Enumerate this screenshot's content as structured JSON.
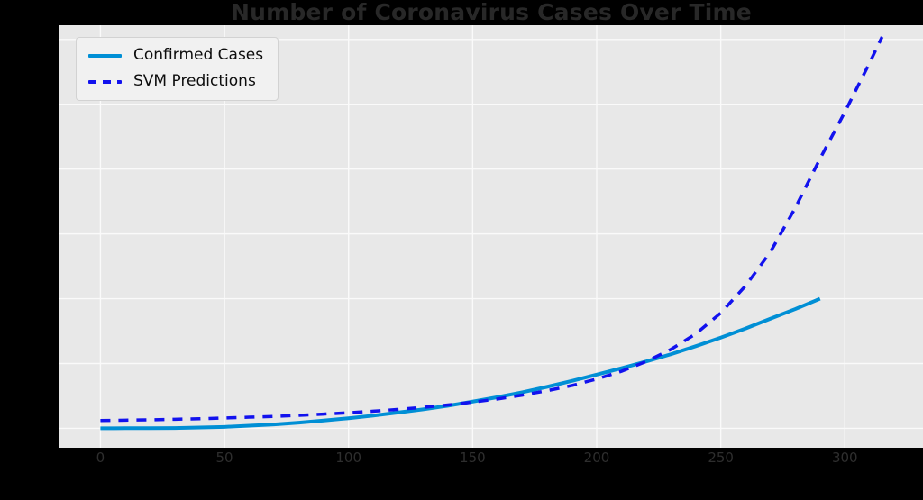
{
  "window": {
    "background": "#000000"
  },
  "title": {
    "text": "Number of Coronavirus Cases Over Time",
    "color": "#282828"
  },
  "plot": {
    "background": "#e8e8e8",
    "grid_color": "#fafafa"
  },
  "legend": {
    "position": "upper left",
    "items": [
      {
        "label": "Confirmed Cases",
        "color": "#008fd5",
        "style": "solid"
      },
      {
        "label": "SVM Predictions",
        "color": "#1212ee",
        "style": "dashed"
      }
    ]
  },
  "x_tick_labels": [
    "0",
    "50",
    "100",
    "150",
    "200",
    "250",
    "300"
  ],
  "chart_data": {
    "type": "line",
    "title": "Number of Coronavirus Cases Over Time",
    "xlabel": "",
    "ylabel": "",
    "grid": true,
    "legend_position": "upper left",
    "xlim": [
      -16.5,
      331.5
    ],
    "ylim": [
      -7500000,
      155500000
    ],
    "x_tick_values": [
      0,
      50,
      100,
      150,
      200,
      250,
      300
    ],
    "y_tick_values": [
      0,
      25000000,
      50000000,
      75000000,
      100000000,
      125000000,
      150000000
    ],
    "series": [
      {
        "name": "Confirmed Cases",
        "color": "#008fd5",
        "style": "solid",
        "x": [
          0,
          10,
          20,
          30,
          40,
          50,
          60,
          70,
          80,
          90,
          100,
          110,
          120,
          130,
          140,
          150,
          160,
          170,
          180,
          190,
          200,
          210,
          220,
          230,
          240,
          250,
          260,
          270,
          280,
          290
        ],
        "y": [
          600,
          40000,
          76000,
          110000,
          300000,
          550000,
          1000000,
          1500000,
          2200000,
          3000000,
          3900000,
          4900000,
          6100000,
          7300000,
          8700000,
          10300000,
          12000000,
          13900000,
          16000000,
          18300000,
          20700000,
          23200000,
          25800000,
          28600000,
          31700000,
          35000000,
          38500000,
          42300000,
          46000000,
          50000000
        ]
      },
      {
        "name": "SVM Predictions",
        "color": "#1212ee",
        "style": "dashed",
        "x": [
          0,
          10,
          20,
          30,
          40,
          50,
          60,
          70,
          80,
          90,
          100,
          110,
          120,
          130,
          140,
          150,
          160,
          170,
          180,
          190,
          200,
          210,
          220,
          230,
          240,
          250,
          260,
          270,
          280,
          290,
          300,
          310,
          315
        ],
        "y": [
          3000000,
          3150000,
          3300000,
          3500000,
          3700000,
          4000000,
          4300000,
          4600000,
          5000000,
          5500000,
          6000000,
          6600000,
          7300000,
          8100000,
          9000000,
          10100000,
          11300000,
          12800000,
          14500000,
          16500000,
          19000000,
          22000000,
          25800000,
          30500000,
          36500000,
          44500000,
          55000000,
          68000000,
          85000000,
          104000000,
          122000000,
          141000000,
          151000000
        ]
      }
    ]
  }
}
